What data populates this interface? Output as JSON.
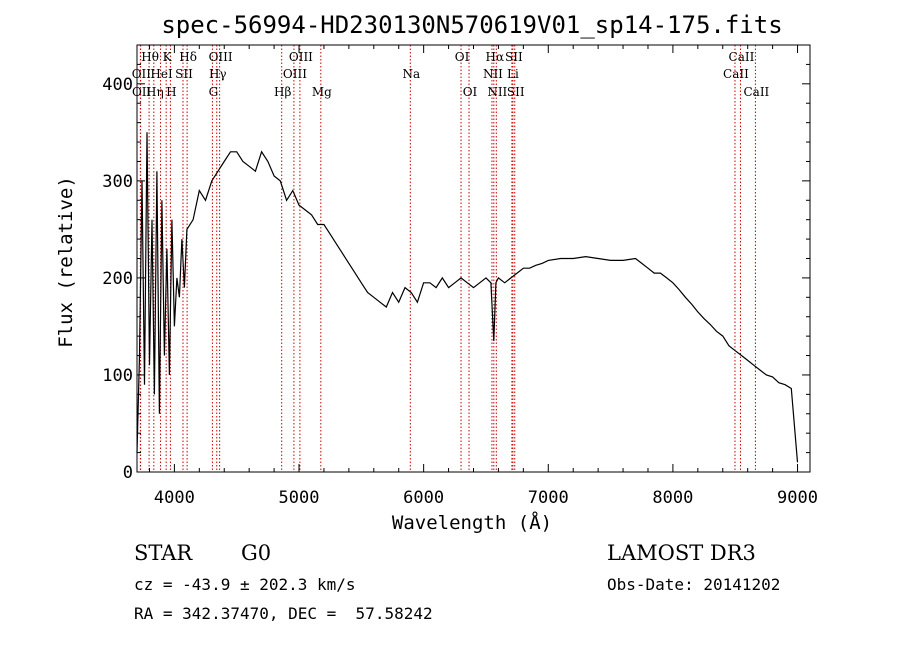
{
  "chart_data": {
    "type": "line",
    "title": "spec-56994-HD230130N570619V01_sp14-175.fits",
    "xlabel": "Wavelength (Å)",
    "ylabel": "Flux (relative)",
    "xlim": [
      3700,
      9100
    ],
    "ylim": [
      0,
      440
    ],
    "x_ticks": [
      4000,
      5000,
      6000,
      7000,
      8000,
      9000
    ],
    "y_ticks": [
      0,
      100,
      200,
      300,
      400
    ],
    "line_color": "#000000",
    "marker_color": "#cc0000",
    "series": [
      {
        "name": "flux",
        "x": [
          3700,
          3720,
          3740,
          3760,
          3780,
          3800,
          3820,
          3840,
          3860,
          3880,
          3900,
          3920,
          3940,
          3960,
          3980,
          4000,
          4020,
          4040,
          4060,
          4080,
          4100,
          4150,
          4200,
          4250,
          4300,
          4350,
          4400,
          4450,
          4500,
          4550,
          4600,
          4650,
          4700,
          4750,
          4800,
          4850,
          4900,
          4950,
          5000,
          5050,
          5100,
          5150,
          5200,
          5250,
          5300,
          5350,
          5400,
          5450,
          5500,
          5550,
          5600,
          5650,
          5700,
          5750,
          5800,
          5850,
          5900,
          5950,
          6000,
          6050,
          6100,
          6150,
          6200,
          6250,
          6300,
          6350,
          6400,
          6450,
          6500,
          6540,
          6563,
          6580,
          6600,
          6650,
          6700,
          6750,
          6800,
          6850,
          6900,
          6950,
          7000,
          7100,
          7200,
          7300,
          7400,
          7500,
          7600,
          7700,
          7750,
          7800,
          7850,
          7900,
          7950,
          8000,
          8050,
          8100,
          8150,
          8200,
          8250,
          8300,
          8350,
          8400,
          8450,
          8500,
          8550,
          8600,
          8650,
          8700,
          8750,
          8800,
          8850,
          8900,
          8950,
          9000
        ],
        "y": [
          20,
          120,
          300,
          90,
          350,
          110,
          260,
          80,
          310,
          60,
          280,
          120,
          230,
          100,
          260,
          150,
          200,
          180,
          240,
          190,
          250,
          260,
          290,
          280,
          300,
          310,
          320,
          330,
          330,
          320,
          315,
          310,
          330,
          320,
          305,
          300,
          280,
          290,
          275,
          270,
          265,
          255,
          255,
          245,
          235,
          225,
          215,
          205,
          195,
          185,
          180,
          175,
          170,
          185,
          175,
          190,
          185,
          175,
          195,
          195,
          190,
          200,
          190,
          195,
          200,
          195,
          190,
          195,
          200,
          195,
          135,
          195,
          200,
          195,
          200,
          205,
          210,
          210,
          213,
          215,
          218,
          220,
          220,
          222,
          220,
          218,
          218,
          220,
          215,
          210,
          205,
          205,
          200,
          195,
          188,
          180,
          173,
          165,
          158,
          152,
          145,
          140,
          130,
          125,
          120,
          115,
          110,
          105,
          100,
          98,
          92,
          90,
          86,
          10
        ]
      }
    ],
    "annotations": [
      {
        "label": "Hθ",
        "x": 3797,
        "row": 1
      },
      {
        "label": "K",
        "x": 3934,
        "row": 1
      },
      {
        "label": "Hδ",
        "x": 4102,
        "row": 1
      },
      {
        "label": "OIII",
        "x": 4363,
        "row": 1
      },
      {
        "label": "OIII",
        "x": 5007,
        "row": 1
      },
      {
        "label": "OI",
        "x": 6300,
        "row": 1
      },
      {
        "label": "Hα",
        "x": 6563,
        "row": 1
      },
      {
        "label": "SII",
        "x": 6716,
        "row": 1
      },
      {
        "label": "CaII",
        "x": 8542,
        "row": 1
      },
      {
        "label": "OII",
        "x": 3727,
        "row": 2
      },
      {
        "label": "HeI",
        "x": 3889,
        "row": 2
      },
      {
        "label": "SII",
        "x": 4069,
        "row": 2
      },
      {
        "label": "Hγ",
        "x": 4340,
        "row": 2
      },
      {
        "label": "OIII",
        "x": 4959,
        "row": 2
      },
      {
        "label": "Na",
        "x": 5893,
        "row": 2
      },
      {
        "label": "NII",
        "x": 6548,
        "row": 2
      },
      {
        "label": "Li",
        "x": 6708,
        "row": 2
      },
      {
        "label": "CaII",
        "x": 8498,
        "row": 2
      },
      {
        "label": "OII",
        "x": 3729,
        "row": 3
      },
      {
        "label": "Hη",
        "x": 3835,
        "row": 3
      },
      {
        "label": "H",
        "x": 3968,
        "row": 3
      },
      {
        "label": "G",
        "x": 4305,
        "row": 3
      },
      {
        "label": "Hβ",
        "x": 4861,
        "row": 3
      },
      {
        "label": "Mg",
        "x": 5175,
        "row": 3
      },
      {
        "label": "OI",
        "x": 6364,
        "row": 3
      },
      {
        "label": "NII",
        "x": 6583,
        "row": 3
      },
      {
        "label": "SII",
        "x": 6731,
        "row": 3
      },
      {
        "label": "CaII",
        "x": 8662,
        "row": 3
      }
    ],
    "marker_lines": [
      3727,
      3729,
      3797,
      3835,
      3889,
      3934,
      3968,
      4069,
      4102,
      4305,
      4340,
      4363,
      4861,
      4959,
      5007,
      5175,
      5893,
      6300,
      6364,
      6548,
      6563,
      6583,
      6708,
      6716,
      6731,
      8498,
      8542,
      8662
    ]
  },
  "info": {
    "class_label": "STAR",
    "subclass": "G0",
    "survey": "LAMOST DR3",
    "cz": "cz = -43.9 ± 202.3 km/s",
    "obs_date": "Obs-Date: 20141202",
    "coords": "RA = 342.37470, DEC =  57.58242"
  }
}
